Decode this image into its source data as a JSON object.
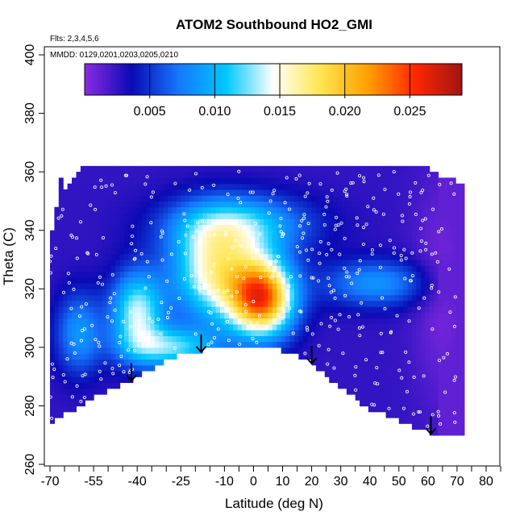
{
  "chart_data": {
    "type": "heatmap",
    "title": "ATOM2 Southbound HO2_GMI",
    "annotations": [
      "Flts: 2,3,4,5,6",
      "MMDD: 0129,0201,0203,0205,0210"
    ],
    "xlabel": "Latitude (deg N)",
    "ylabel": "Theta (C)",
    "xlim": [
      -70,
      85
    ],
    "ylim": [
      260,
      405
    ],
    "x_ticks": [
      -70,
      -55,
      -40,
      -25,
      -10,
      10,
      20,
      30,
      40,
      50,
      60,
      70,
      80
    ],
    "x_tick_labels": [
      "-70",
      "-55",
      "-40",
      "-25",
      "-10",
      "10",
      "20",
      "30",
      "40",
      "50",
      "60",
      "70",
      "80"
    ],
    "x_minor_ticks": [
      -65,
      -60,
      -50,
      -45,
      -35,
      -30,
      -20,
      -15,
      -5,
      0,
      5,
      15,
      25,
      35,
      45,
      55,
      65,
      75,
      85
    ],
    "x_minor_tick_labels": [
      "",
      "",
      "",
      "",
      "",
      "",
      "",
      "",
      "",
      "0",
      "",
      "",
      "",
      "",
      "",
      "",
      "",
      "",
      ""
    ],
    "y_ticks": [
      260,
      280,
      300,
      320,
      340,
      360,
      380,
      400
    ],
    "y_tick_labels": [
      "260",
      "280",
      "300",
      "320",
      "340",
      "360",
      "380",
      "400"
    ],
    "colorbar": {
      "range": [
        0,
        0.029
      ],
      "ticks": [
        0.005,
        0.01,
        0.015,
        0.02,
        0.025
      ],
      "tick_labels": [
        "0.005",
        "0.010",
        "0.015",
        "0.020",
        "0.025"
      ],
      "colors": [
        "#8a2be2",
        "#0a0ab4",
        "#1478ff",
        "#00c8ff",
        "#ffffff",
        "#ffe650",
        "#ffa000",
        "#ff2800",
        "#a01414"
      ]
    },
    "profile_arrows_lat": [
      -42,
      -18,
      20,
      61
    ],
    "data_field": {
      "description_values": "HO2 mixing ratio field vs latitude and theta",
      "core_max": {
        "lat": 3,
        "theta": 317,
        "value": 0.026
      },
      "lat_range": [
        -70,
        72
      ],
      "theta_top": 362,
      "bottom_boundary": [
        {
          "lat": -70,
          "theta": 274
        },
        {
          "lat": -55,
          "theta": 283
        },
        {
          "lat": -40,
          "theta": 290
        },
        {
          "lat": -25,
          "theta": 298
        },
        {
          "lat": -10,
          "theta": 300
        },
        {
          "lat": 0,
          "theta": 300
        },
        {
          "lat": 10,
          "theta": 299
        },
        {
          "lat": 20,
          "theta": 295
        },
        {
          "lat": 30,
          "theta": 286
        },
        {
          "lat": 40,
          "theta": 279
        },
        {
          "lat": 50,
          "theta": 275
        },
        {
          "lat": 60,
          "theta": 271
        },
        {
          "lat": 72,
          "theta": 270
        }
      ]
    }
  }
}
